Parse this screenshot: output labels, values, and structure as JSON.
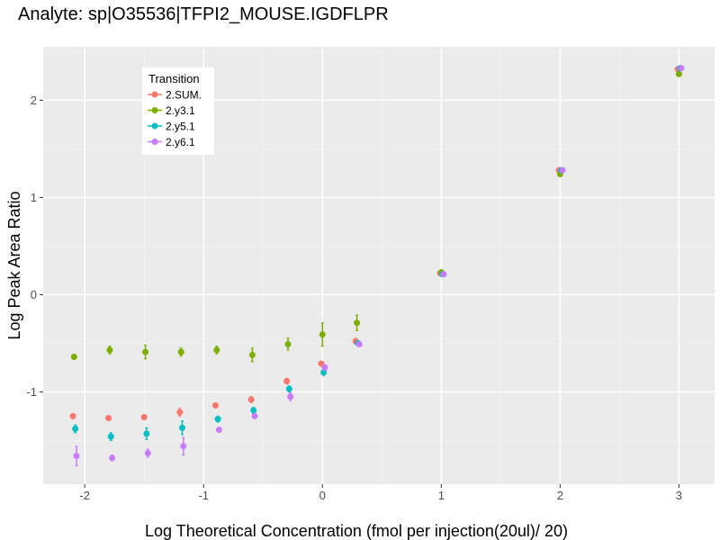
{
  "chart_data": {
    "type": "scatter",
    "title": "Analyte: sp|O35536|TFPI2_MOUSE.IGDFLPR",
    "xlabel": "Log Theoretical Concentration (fmol per injection(20ul)/ 20)",
    "ylabel": "Log Peak Area Ratio",
    "xlim": [
      -2.35,
      3.3
    ],
    "ylim": [
      -1.95,
      2.55
    ],
    "x_ticks": [
      -2,
      -1,
      0,
      1,
      2,
      3
    ],
    "x_tick_labels": [
      "-2",
      "-1",
      "0",
      "1",
      "2",
      "3"
    ],
    "y_ticks": [
      -1,
      0,
      1,
      2
    ],
    "y_tick_labels": [
      "-1",
      "0",
      "1",
      "2"
    ],
    "grid": true,
    "legend_title": "Transition",
    "legend_position": "top-left",
    "series": [
      {
        "name": "2.SUM.",
        "color": "#F8766D",
        "points": [
          {
            "x": -2.1,
            "y": -1.25,
            "err": 0.02
          },
          {
            "x": -1.8,
            "y": -1.27,
            "err": 0.02
          },
          {
            "x": -1.5,
            "y": -1.26,
            "err": 0.02
          },
          {
            "x": -1.2,
            "y": -1.21,
            "err": 0.04
          },
          {
            "x": -0.9,
            "y": -1.14,
            "err": 0.02
          },
          {
            "x": -0.6,
            "y": -1.08,
            "err": 0.03
          },
          {
            "x": -0.3,
            "y": -0.89,
            "err": 0.03
          },
          {
            "x": -0.01,
            "y": -0.71,
            "err": 0.02
          },
          {
            "x": 0.28,
            "y": -0.48,
            "err": 0.03
          },
          {
            "x": 0.99,
            "y": 0.22,
            "err": 0.02
          },
          {
            "x": 1.99,
            "y": 1.28,
            "err": 0.02
          },
          {
            "x": 2.99,
            "y": 2.32,
            "err": 0.02
          }
        ]
      },
      {
        "name": "2.y3.1",
        "color": "#7CAE00",
        "points": [
          {
            "x": -2.09,
            "y": -0.64,
            "err": 0.02
          },
          {
            "x": -1.79,
            "y": -0.57,
            "err": 0.04
          },
          {
            "x": -1.49,
            "y": -0.59,
            "err": 0.07
          },
          {
            "x": -1.19,
            "y": -0.59,
            "err": 0.04
          },
          {
            "x": -0.89,
            "y": -0.57,
            "err": 0.04
          },
          {
            "x": -0.59,
            "y": -0.62,
            "err": 0.07
          },
          {
            "x": -0.29,
            "y": -0.51,
            "err": 0.06
          },
          {
            "x": 0.0,
            "y": -0.41,
            "err": 0.12
          },
          {
            "x": 0.29,
            "y": -0.29,
            "err": 0.08
          },
          {
            "x": 1.0,
            "y": 0.23,
            "err": 0.02
          },
          {
            "x": 2.0,
            "y": 1.24,
            "err": 0.02
          },
          {
            "x": 3.0,
            "y": 2.27,
            "err": 0.02
          }
        ]
      },
      {
        "name": "2.y5.1",
        "color": "#00BFC4",
        "points": [
          {
            "x": -2.08,
            "y": -1.38,
            "err": 0.04
          },
          {
            "x": -1.78,
            "y": -1.46,
            "err": 0.04
          },
          {
            "x": -1.48,
            "y": -1.43,
            "err": 0.06
          },
          {
            "x": -1.18,
            "y": -1.37,
            "err": 0.07
          },
          {
            "x": -0.88,
            "y": -1.28,
            "err": 0.03
          },
          {
            "x": -0.58,
            "y": -1.19,
            "err": 0.03
          },
          {
            "x": -0.28,
            "y": -0.97,
            "err": 0.03
          },
          {
            "x": 0.01,
            "y": -0.8,
            "err": 0.03
          },
          {
            "x": 0.3,
            "y": -0.5,
            "err": 0.02
          },
          {
            "x": 1.01,
            "y": 0.21,
            "err": 0.02
          },
          {
            "x": 2.01,
            "y": 1.28,
            "err": 0.02
          },
          {
            "x": 3.01,
            "y": 2.33,
            "err": 0.02
          }
        ]
      },
      {
        "name": "2.y6.1",
        "color": "#C77CFF",
        "points": [
          {
            "x": -2.07,
            "y": -1.66,
            "err": 0.1
          },
          {
            "x": -1.77,
            "y": -1.68,
            "err": 0.03
          },
          {
            "x": -1.47,
            "y": -1.63,
            "err": 0.04
          },
          {
            "x": -1.17,
            "y": -1.56,
            "err": 0.09
          },
          {
            "x": -0.87,
            "y": -1.39,
            "err": 0.02
          },
          {
            "x": -0.57,
            "y": -1.25,
            "err": 0.02
          },
          {
            "x": -0.27,
            "y": -1.05,
            "err": 0.04
          },
          {
            "x": 0.02,
            "y": -0.75,
            "err": 0.03
          },
          {
            "x": 0.31,
            "y": -0.51,
            "err": 0.02
          },
          {
            "x": 1.02,
            "y": 0.21,
            "err": 0.02
          },
          {
            "x": 2.02,
            "y": 1.28,
            "err": 0.02
          },
          {
            "x": 3.02,
            "y": 2.33,
            "err": 0.02
          }
        ]
      }
    ]
  }
}
